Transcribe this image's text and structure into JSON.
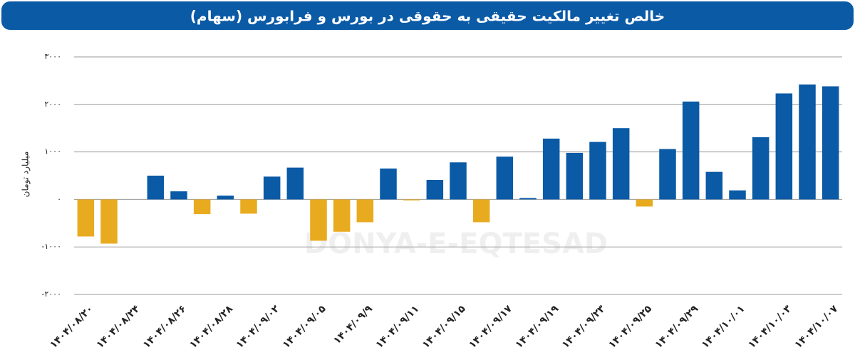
{
  "chart_data": {
    "type": "bar",
    "title": "خالص تغییر مالکیت حقیقی به حقوقی در بورس و فرابورس (سهام)",
    "y_label": "میلیارد تومان",
    "watermark": "DONYA-E-EQTESAD",
    "categories": [
      "۱۴۰۴/۰۸/۲۰",
      null,
      "۱۴۰۴/۰۸/۲۴",
      null,
      "۱۴۰۴/۰۸/۲۶",
      null,
      "۱۴۰۴/۰۸/۲۸",
      null,
      "۱۴۰۴/۰۹/۰۲",
      null,
      "۱۴۰۴/۰۹/۰۵",
      null,
      "۱۴۰۴/۰۹/۹",
      null,
      "۱۴۰۴/۰۹/۱۱",
      null,
      "۱۴۰۴/۰۹/۱۵",
      null,
      "۱۴۰۴/۰۹/۱۷",
      null,
      "۱۴۰۴/۰۹/۱۹",
      null,
      "۱۴۰۴/۰۹/۲۳",
      null,
      "۱۴۰۴/۰۹/۲۵",
      null,
      "۱۴۰۴/۰۹/۲۹",
      null,
      "۱۴۰۴/۱۰/۰۱",
      null,
      "۱۴۰۴/۱۰/۰۳",
      null,
      "۱۴۰۴/۱۰/۰۷"
    ],
    "values": [
      -780,
      -930,
      0,
      500,
      170,
      -310,
      80,
      -300,
      480,
      670,
      -870,
      -680,
      -480,
      650,
      -20,
      410,
      780,
      -480,
      900,
      30,
      1280,
      980,
      1210,
      1500,
      -150,
      1060,
      2060,
      580,
      190,
      1310,
      2230,
      2420,
      2380
    ],
    "positive_color": "#0a5aa6",
    "negative_color": "#e8ab1f",
    "ylim": [
      -2000,
      3000
    ],
    "yticks": [
      {
        "value": -2000,
        "label": "-۲۰۰۰"
      },
      {
        "value": -1000,
        "label": "-۱۰۰۰"
      },
      {
        "value": 0,
        "label": "۰"
      },
      {
        "value": 1000,
        "label": "۱۰۰۰"
      },
      {
        "value": 2000,
        "label": "۲۰۰۰"
      },
      {
        "value": 3000,
        "label": "۳۰۰۰"
      }
    ],
    "grid": true
  }
}
